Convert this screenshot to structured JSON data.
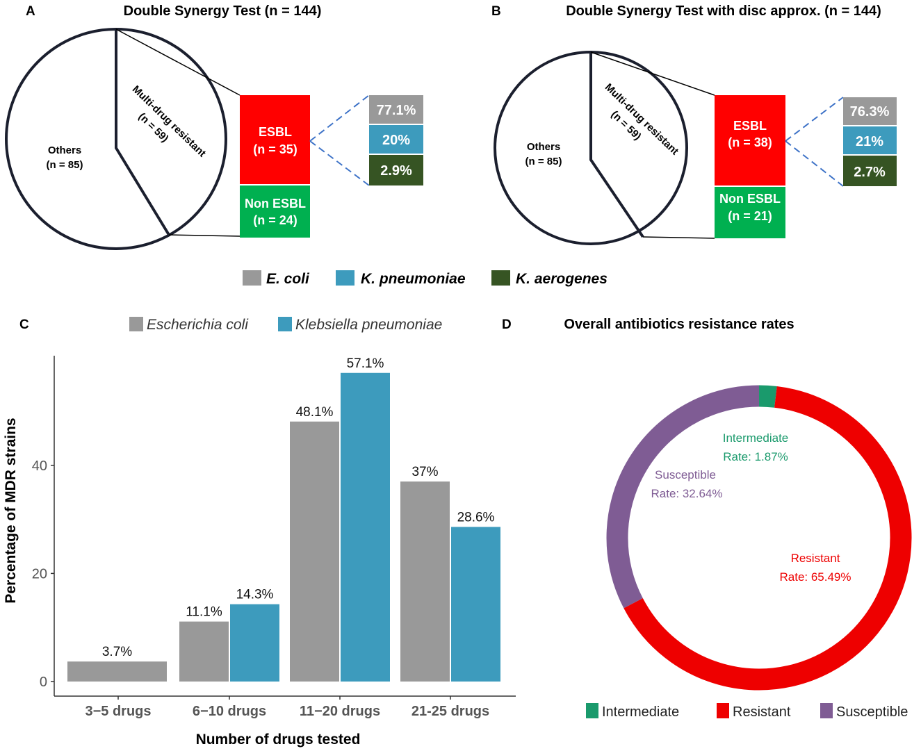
{
  "panel_a": {
    "letter": "A",
    "title": "Double Synergy Test (n = 144)",
    "others_label": "Others",
    "others_n": "(n = 85)",
    "mdr_label": "Multi-drug resistant",
    "mdr_n": "(n = 59)",
    "esbl_label": "ESBL",
    "esbl_n": "(n = 35)",
    "nonesbl_label": "Non ESBL",
    "nonesbl_n": "(n = 24)",
    "pct_ecoli": "77.1%",
    "pct_kpneu": "20%",
    "pct_kaero": "2.9%"
  },
  "panel_b": {
    "letter": "B",
    "title": "Double Synergy Test with disc approx. (n = 144)",
    "others_label": "Others",
    "others_n": "(n = 85)",
    "mdr_label": "Multi-drug resistant",
    "mdr_n": "(n = 59)",
    "esbl_label": "ESBL",
    "esbl_n": "(n = 38)",
    "nonesbl_label": "Non ESBL",
    "nonesbl_n": "(n = 21)",
    "pct_ecoli": "76.3%",
    "pct_kpneu": "21%",
    "pct_kaero": "2.7%"
  },
  "legend_ab": {
    "ecoli": "E. coli",
    "kpneu": "K. pneumoniae",
    "kaero": "K. aerogenes"
  },
  "panel_c": {
    "letter": "C",
    "legend_ecoli": "Escherichia coli",
    "legend_kpneu": "Klebsiella pneumoniae"
  },
  "panel_d": {
    "letter": "D",
    "title": "Overall antibiotics resistance rates",
    "label_intermediate": "Intermediate",
    "rate_intermediate": "Rate: 1.87%",
    "label_susceptible": "Susceptible",
    "rate_susceptible": "Rate: 32.64%",
    "label_resistant": "Resistant",
    "rate_resistant": "Rate: 65.49%",
    "legend_intermediate": "Intermediate",
    "legend_resistant": "Resistant",
    "legend_susceptible": "Susceptible"
  },
  "colors": {
    "ecoli": "#999999",
    "kpneu": "#3d9bbd",
    "kaero": "#365423",
    "esbl": "#ff0000",
    "nonesbl": "#00b050",
    "intermediate": "#1a9a6c",
    "resistant": "#ee0000",
    "susceptible": "#7f5c94",
    "outline": "#1b1f2e",
    "dash": "#3d72c7"
  },
  "chart_data": [
    {
      "type": "bar",
      "panel": "C",
      "categories": [
        "3−5 drugs",
        "6−10 drugs",
        "11−20 drugs",
        "21-25 drugs"
      ],
      "series": [
        {
          "name": "Escherichia coli",
          "values": [
            3.7,
            11.1,
            48.1,
            37
          ],
          "labels": [
            "3.7%",
            "11.1%",
            "48.1%",
            "37%"
          ]
        },
        {
          "name": "Klebsiella pneumoniae",
          "values": [
            null,
            14.3,
            57.1,
            28.6
          ],
          "labels": [
            "",
            "14.3%",
            "57.1%",
            "28.6%"
          ]
        }
      ],
      "xlabel": "Number of drugs tested",
      "ylabel": "Percentage of MDR strains",
      "yticks": [
        0,
        20,
        40
      ],
      "ylim": [
        0,
        60
      ],
      "legend": "top"
    },
    {
      "type": "pie",
      "panel": "D",
      "style": "donut",
      "title": "Overall antibiotics resistance rates",
      "categories": [
        "Intermediate",
        "Resistant",
        "Susceptible"
      ],
      "values": [
        1.87,
        65.49,
        32.64
      ],
      "legend": "bottom"
    }
  ]
}
